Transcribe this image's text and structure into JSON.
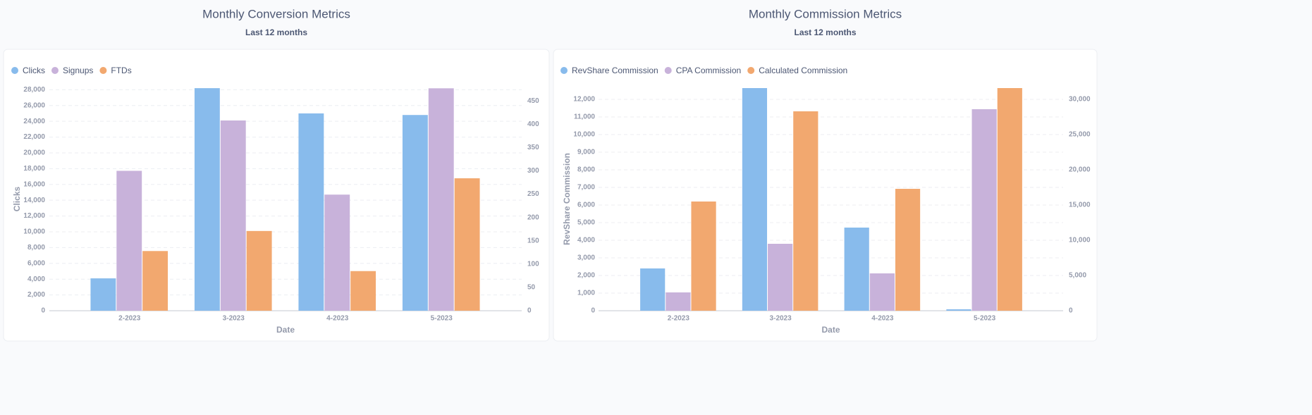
{
  "chart_data": [
    {
      "type": "bar",
      "title": "Monthly Conversion Metrics",
      "subtitle": "Last 12 months",
      "x_label": "Date",
      "y_label": "Clicks",
      "categories": [
        "2-2023",
        "3-2023",
        "4-2023",
        "5-2023"
      ],
      "series": [
        {
          "name": "Clicks",
          "color": "#88bbec",
          "values": [
            4100,
            28200,
            25000,
            24800
          ]
        },
        {
          "name": "Signups",
          "color": "#c8b2da",
          "axis": "y2",
          "values": [
            300,
            408,
            249,
            477
          ]
        },
        {
          "name": "FTDs",
          "color": "#f2a86f",
          "axis": "y2",
          "values": [
            128,
            171,
            85,
            284
          ]
        }
      ],
      "ylim": [
        0,
        28300
      ],
      "yticks": [
        0,
        {
          "value": 2000,
          "label": "2,000"
        },
        {
          "value": 4000,
          "label": "4,000"
        },
        {
          "value": 6000,
          "label": "6,000"
        },
        {
          "value": 8000,
          "label": "8,000"
        },
        {
          "value": 10000,
          "label": "10,000"
        },
        {
          "value": 12000,
          "label": "12,000"
        },
        {
          "value": 14000,
          "label": "14,000"
        },
        {
          "value": 16000,
          "label": "16,000"
        },
        {
          "value": 18000,
          "label": "18,000"
        },
        {
          "value": 20000,
          "label": "20,000"
        },
        {
          "value": 22000,
          "label": "22,000"
        },
        {
          "value": 24000,
          "label": "24,000"
        },
        {
          "value": 26000,
          "label": "26,000"
        },
        {
          "value": 28000,
          "label": "28,000"
        }
      ],
      "y2lim": [
        0,
        479
      ],
      "y2ticks": [
        0,
        50,
        100,
        150,
        200,
        250,
        300,
        350,
        400,
        450
      ],
      "grid": true,
      "legend": "top-left"
    },
    {
      "type": "bar",
      "title": "Monthly Commission Metrics",
      "subtitle": "Last 12 months",
      "x_label": "Date",
      "y_label": "RevShare Commission",
      "categories": [
        "2-2023",
        "3-2023",
        "4-2023",
        "5-2023"
      ],
      "series": [
        {
          "name": "RevShare Commission",
          "color": "#88bbec",
          "values": [
            2400,
            12640,
            4720,
            80
          ]
        },
        {
          "name": "CPA Commission",
          "color": "#c8b2da",
          "values": [
            1040,
            3800,
            2120,
            11440
          ]
        },
        {
          "name": "Calculated Commission",
          "color": "#f2a86f",
          "axis": "y2",
          "values": [
            15500,
            28300,
            17300,
            31600
          ]
        }
      ],
      "ylim": [
        0,
        12680
      ],
      "yticks": [
        0,
        {
          "value": 1000,
          "label": "1,000"
        },
        {
          "value": 2000,
          "label": "2,000"
        },
        {
          "value": 3000,
          "label": "3,000"
        },
        {
          "value": 4000,
          "label": "4,000"
        },
        {
          "value": 5000,
          "label": "5,000"
        },
        {
          "value": 6000,
          "label": "6,000"
        },
        {
          "value": 7000,
          "label": "7,000"
        },
        {
          "value": 8000,
          "label": "8,000"
        },
        {
          "value": 9000,
          "label": "9,000"
        },
        {
          "value": 10000,
          "label": "10,000"
        },
        {
          "value": 11000,
          "label": "11,000"
        },
        {
          "value": 12000,
          "label": "12,000"
        }
      ],
      "y2lim": [
        0,
        31700
      ],
      "y2ticks": [
        0,
        {
          "value": 5000,
          "label": "5,000"
        },
        {
          "value": 10000,
          "label": "10,000"
        },
        {
          "value": 15000,
          "label": "15,000"
        },
        {
          "value": 20000,
          "label": "20,000"
        },
        {
          "value": 25000,
          "label": "25,000"
        },
        {
          "value": 30000,
          "label": "30,000"
        }
      ],
      "grid": true,
      "legend": "top-left"
    }
  ]
}
